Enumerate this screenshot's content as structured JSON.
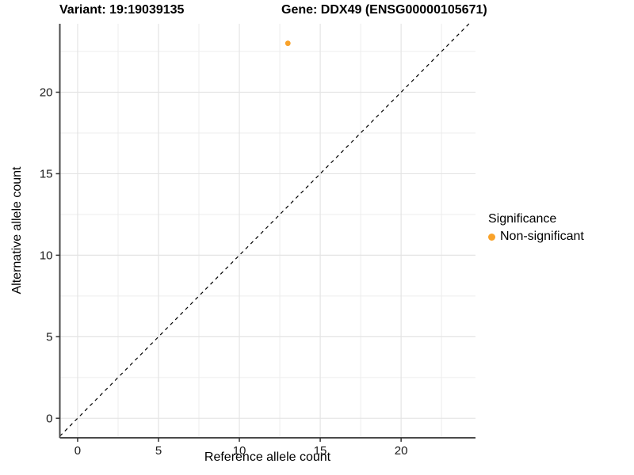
{
  "titles": {
    "left": "Variant: 19:19039135",
    "right": "Gene: DDX49 (ENSG00000105671)"
  },
  "axes": {
    "x_label": "Reference allele count",
    "y_label": "Alternative allele count"
  },
  "legend": {
    "title": "Significance",
    "items": [
      {
        "label": "Non-significant",
        "color": "#F9A22A",
        "marker": "circle"
      }
    ]
  },
  "colors": {
    "point_orange": "#F9A22A",
    "grid_major": "#E4E4E4",
    "grid_minor": "#EDEDED",
    "axis_line": "#4A4A4A",
    "tick_mark": "#333333",
    "tick_label": "#1A1A1A",
    "identity_line": "#000000",
    "background": "#FFFFFF"
  },
  "chart_data": {
    "type": "scatter",
    "title": "Variant: 19:19039135   Gene: DDX49 (ENSG00000105671)",
    "xlabel": "Reference allele count",
    "ylabel": "Alternative allele count",
    "xlim": [
      -1.1,
      24.6
    ],
    "ylim": [
      -1.2,
      24.2
    ],
    "x_major_ticks": [
      0,
      5,
      10,
      15,
      20
    ],
    "y_major_ticks": [
      0,
      5,
      10,
      15,
      20
    ],
    "x_minor_ticks": [
      2.5,
      7.5,
      12.5,
      17.5,
      22.5
    ],
    "y_minor_ticks": [
      2.5,
      7.5,
      12.5,
      17.5,
      22.5
    ],
    "grid": true,
    "legend_position": "right",
    "identity_line": {
      "equation": "y = x",
      "style": "dashed"
    },
    "series": [
      {
        "name": "Non-significant",
        "color": "#F9A22A",
        "points": [
          {
            "x": 13,
            "y": 23
          }
        ]
      }
    ]
  }
}
